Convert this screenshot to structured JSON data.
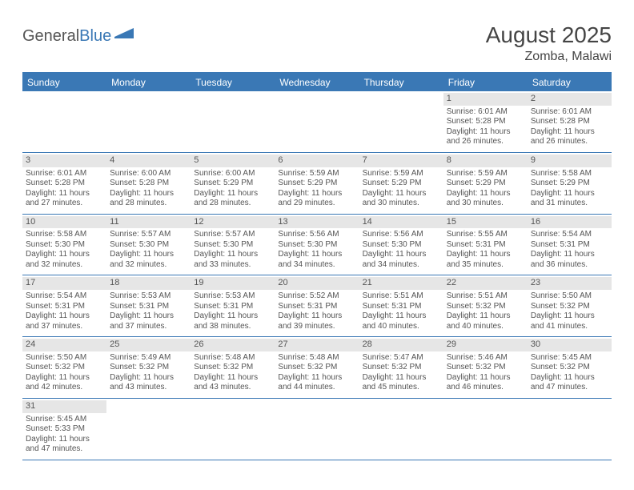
{
  "logo": {
    "text1": "General",
    "text2": "Blue"
  },
  "title": "August 2025",
  "location": "Zomba, Malawi",
  "colors": {
    "header_bg": "#3a78b5",
    "header_text": "#ffffff",
    "daynum_bg": "#e6e6e6",
    "border": "#3a78b5",
    "text": "#555555"
  },
  "weekdays": [
    "Sunday",
    "Monday",
    "Tuesday",
    "Wednesday",
    "Thursday",
    "Friday",
    "Saturday"
  ],
  "weeks": [
    [
      null,
      null,
      null,
      null,
      null,
      {
        "d": "1",
        "r": "6:01 AM",
        "s": "5:28 PM",
        "h": "11",
        "m": "26"
      },
      {
        "d": "2",
        "r": "6:01 AM",
        "s": "5:28 PM",
        "h": "11",
        "m": "26"
      }
    ],
    [
      {
        "d": "3",
        "r": "6:01 AM",
        "s": "5:28 PM",
        "h": "11",
        "m": "27"
      },
      {
        "d": "4",
        "r": "6:00 AM",
        "s": "5:28 PM",
        "h": "11",
        "m": "28"
      },
      {
        "d": "5",
        "r": "6:00 AM",
        "s": "5:29 PM",
        "h": "11",
        "m": "28"
      },
      {
        "d": "6",
        "r": "5:59 AM",
        "s": "5:29 PM",
        "h": "11",
        "m": "29"
      },
      {
        "d": "7",
        "r": "5:59 AM",
        "s": "5:29 PM",
        "h": "11",
        "m": "30"
      },
      {
        "d": "8",
        "r": "5:59 AM",
        "s": "5:29 PM",
        "h": "11",
        "m": "30"
      },
      {
        "d": "9",
        "r": "5:58 AM",
        "s": "5:29 PM",
        "h": "11",
        "m": "31"
      }
    ],
    [
      {
        "d": "10",
        "r": "5:58 AM",
        "s": "5:30 PM",
        "h": "11",
        "m": "32"
      },
      {
        "d": "11",
        "r": "5:57 AM",
        "s": "5:30 PM",
        "h": "11",
        "m": "32"
      },
      {
        "d": "12",
        "r": "5:57 AM",
        "s": "5:30 PM",
        "h": "11",
        "m": "33"
      },
      {
        "d": "13",
        "r": "5:56 AM",
        "s": "5:30 PM",
        "h": "11",
        "m": "34"
      },
      {
        "d": "14",
        "r": "5:56 AM",
        "s": "5:30 PM",
        "h": "11",
        "m": "34"
      },
      {
        "d": "15",
        "r": "5:55 AM",
        "s": "5:31 PM",
        "h": "11",
        "m": "35"
      },
      {
        "d": "16",
        "r": "5:54 AM",
        "s": "5:31 PM",
        "h": "11",
        "m": "36"
      }
    ],
    [
      {
        "d": "17",
        "r": "5:54 AM",
        "s": "5:31 PM",
        "h": "11",
        "m": "37"
      },
      {
        "d": "18",
        "r": "5:53 AM",
        "s": "5:31 PM",
        "h": "11",
        "m": "37"
      },
      {
        "d": "19",
        "r": "5:53 AM",
        "s": "5:31 PM",
        "h": "11",
        "m": "38"
      },
      {
        "d": "20",
        "r": "5:52 AM",
        "s": "5:31 PM",
        "h": "11",
        "m": "39"
      },
      {
        "d": "21",
        "r": "5:51 AM",
        "s": "5:31 PM",
        "h": "11",
        "m": "40"
      },
      {
        "d": "22",
        "r": "5:51 AM",
        "s": "5:32 PM",
        "h": "11",
        "m": "40"
      },
      {
        "d": "23",
        "r": "5:50 AM",
        "s": "5:32 PM",
        "h": "11",
        "m": "41"
      }
    ],
    [
      {
        "d": "24",
        "r": "5:50 AM",
        "s": "5:32 PM",
        "h": "11",
        "m": "42"
      },
      {
        "d": "25",
        "r": "5:49 AM",
        "s": "5:32 PM",
        "h": "11",
        "m": "43"
      },
      {
        "d": "26",
        "r": "5:48 AM",
        "s": "5:32 PM",
        "h": "11",
        "m": "43"
      },
      {
        "d": "27",
        "r": "5:48 AM",
        "s": "5:32 PM",
        "h": "11",
        "m": "44"
      },
      {
        "d": "28",
        "r": "5:47 AM",
        "s": "5:32 PM",
        "h": "11",
        "m": "45"
      },
      {
        "d": "29",
        "r": "5:46 AM",
        "s": "5:32 PM",
        "h": "11",
        "m": "46"
      },
      {
        "d": "30",
        "r": "5:45 AM",
        "s": "5:32 PM",
        "h": "11",
        "m": "47"
      }
    ],
    [
      {
        "d": "31",
        "r": "5:45 AM",
        "s": "5:33 PM",
        "h": "11",
        "m": "47"
      },
      null,
      null,
      null,
      null,
      null,
      null
    ]
  ],
  "labels": {
    "sunrise": "Sunrise: ",
    "sunset": "Sunset: ",
    "daylight_a": "Daylight: ",
    "daylight_b": " hours and ",
    "daylight_c": " minutes."
  }
}
